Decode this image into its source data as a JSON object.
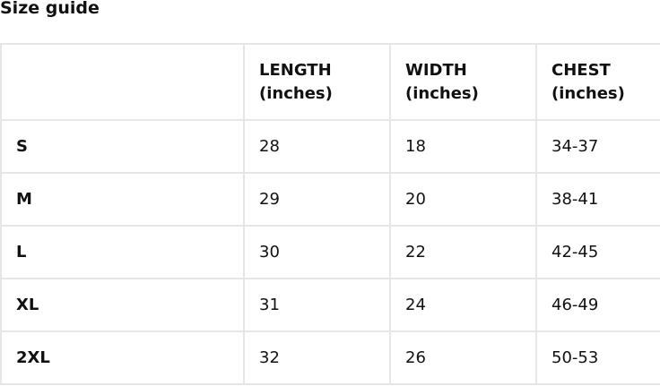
{
  "title": "Size guide",
  "table": {
    "headers": [
      "",
      " LENGTH (inches)",
      "WIDTH (inches)",
      "CHEST (inches)"
    ],
    "header_lines": [
      [
        "",
        ""
      ],
      [
        "LENGTH",
        "(inches)"
      ],
      [
        "WIDTH",
        "(inches)"
      ],
      [
        "CHEST",
        "(inches)"
      ]
    ],
    "rows": [
      [
        "S",
        "28",
        "18",
        "34-37"
      ],
      [
        "M",
        "29",
        "20",
        "38-41"
      ],
      [
        "L",
        "30",
        "22",
        "42-45"
      ],
      [
        "XL",
        "31",
        "24",
        "46-49"
      ],
      [
        "2XL",
        "32",
        "26",
        "50-53"
      ]
    ]
  }
}
